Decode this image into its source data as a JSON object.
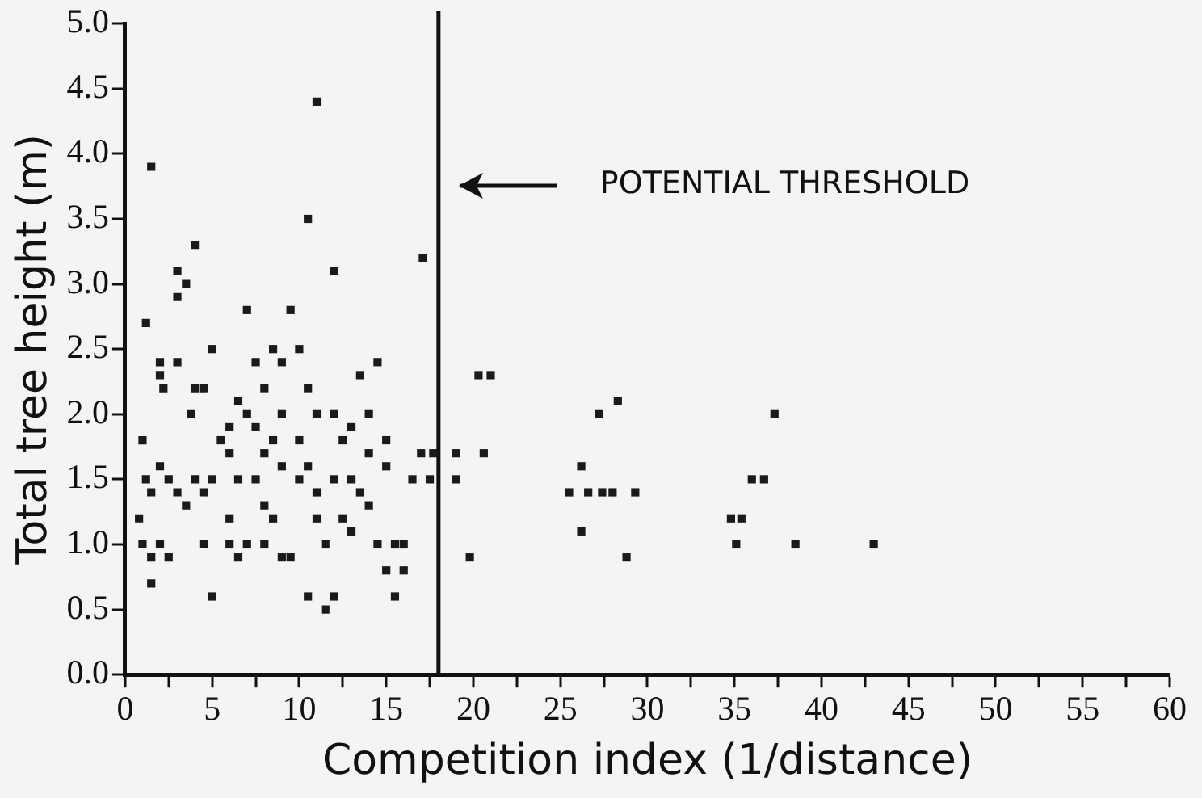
{
  "chart_data": {
    "type": "scatter",
    "xlabel": "Competition index (1/distance)",
    "ylabel": "Total tree height (m)",
    "xlim": [
      0,
      60
    ],
    "ylim": [
      0,
      5
    ],
    "xticks": [
      0,
      {
        "value": 2.5,
        "label": null
      },
      5,
      {
        "value": 7.5,
        "label": null
      },
      10,
      {
        "value": 12.5,
        "label": null
      },
      15,
      {
        "value": 17.5,
        "label": null
      },
      20,
      {
        "value": 22.5,
        "label": null
      },
      25,
      {
        "value": 27.5,
        "label": null
      },
      30,
      {
        "value": 32.5,
        "label": null
      },
      35,
      {
        "value": 37.5,
        "label": null
      },
      40,
      {
        "value": 42.5,
        "label": null
      },
      45,
      {
        "value": 47.5,
        "label": null
      },
      50,
      {
        "value": 52.5,
        "label": null
      },
      55,
      {
        "value": 57.5,
        "label": null
      },
      60
    ],
    "yticks": [
      {
        "value": 0,
        "label": "0.0"
      },
      0.5,
      {
        "value": 1,
        "label": "1.0"
      },
      1.5,
      {
        "value": 2,
        "label": "2.0"
      },
      2.5,
      {
        "value": 3,
        "label": "3.0"
      },
      3.5,
      {
        "value": 4,
        "label": "4.0"
      },
      4.5,
      {
        "value": 5,
        "label": "5.0"
      }
    ],
    "grid": false,
    "legend": false,
    "marker": "square",
    "ref_lines": [
      {
        "axis": "x",
        "value": 18,
        "label": "POTENTIAL THRESHOLD",
        "color": "#111111"
      }
    ],
    "series": [
      {
        "color": "#1a1a1a",
        "x": [
          1.5,
          1.2,
          3,
          4,
          3.5,
          2,
          2,
          2.2,
          3,
          4,
          4.5,
          5,
          1,
          1.2,
          1.5,
          2,
          2.5,
          3,
          3.5,
          4,
          5,
          4.5,
          0.8,
          1,
          1.5,
          2,
          2.5,
          1.5,
          4.5,
          6,
          6.5,
          7,
          5,
          6,
          6,
          6.5,
          7,
          7,
          7.5,
          8,
          8.5,
          9,
          9.5,
          10,
          10.5,
          11,
          8,
          7.5,
          6.5,
          8,
          8.5,
          9,
          9.5,
          10,
          10,
          10.5,
          11,
          11,
          11.5,
          10.5,
          11.5,
          12,
          11,
          10.5,
          12,
          12,
          12.5,
          13,
          13.5,
          14,
          14.5,
          15,
          13,
          13.5,
          14,
          12.5,
          13,
          15,
          15.5,
          16,
          15,
          16,
          15.5,
          16.5,
          17,
          17.1,
          14,
          9,
          8.5,
          7.5,
          5.5,
          6,
          9,
          12,
          3.8,
          8,
          14.5,
          3,
          20.3,
          21,
          27.2,
          28.3,
          37.3,
          17.7,
          19,
          20.6,
          17.5,
          19,
          26.2,
          25.5,
          26.6,
          27.4,
          28,
          29.3,
          26.2,
          28.8,
          19.8,
          36,
          36.7,
          34.8,
          35.4,
          35.1,
          38.5,
          43
        ],
        "values": [
          3.9,
          2.7,
          3.1,
          3.3,
          3,
          2.4,
          2.3,
          2.2,
          2.4,
          2.2,
          2.2,
          2.5,
          1.8,
          1.5,
          1.4,
          1.6,
          1.5,
          1.4,
          1.3,
          1.5,
          1.5,
          1.4,
          1.2,
          1,
          0.9,
          1,
          0.9,
          0.7,
          1,
          1,
          0.9,
          1,
          0.6,
          1.7,
          1.9,
          2.1,
          2,
          2.8,
          2.4,
          2.2,
          2.5,
          2.4,
          2.8,
          2.5,
          2.2,
          2,
          1.7,
          1.5,
          1.5,
          1.3,
          1.2,
          0.9,
          0.9,
          1.5,
          1.8,
          1.6,
          1.4,
          1.2,
          1,
          0.6,
          0.5,
          0.6,
          4.4,
          3.5,
          3.1,
          2,
          1.8,
          1.9,
          2.3,
          2,
          2.4,
          1.8,
          1.5,
          1.4,
          1.3,
          1.2,
          1.1,
          1.6,
          1,
          1,
          0.8,
          0.8,
          0.6,
          1.5,
          1.7,
          3.2,
          1.7,
          2,
          1.8,
          1.9,
          1.8,
          1.2,
          1.6,
          1.5,
          2,
          1,
          1,
          2.9,
          2.3,
          2.3,
          2,
          2.1,
          2,
          1.7,
          1.7,
          1.7,
          1.5,
          1.5,
          1.6,
          1.4,
          1.4,
          1.4,
          1.4,
          1.4,
          1.1,
          0.9,
          0.9,
          1.5,
          1.5,
          1.2,
          1.2,
          1,
          1,
          1
        ]
      }
    ]
  }
}
